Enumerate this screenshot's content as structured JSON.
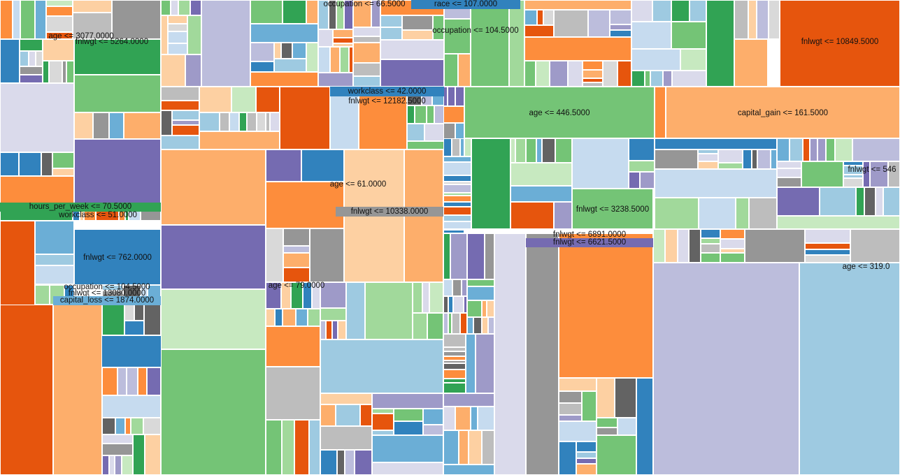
{
  "palette": {
    "blue": "#3182bd",
    "blue_mid": "#6baed6",
    "blue_light": "#9ecae1",
    "blue_pale": "#c6dbef",
    "orange": "#e6550d",
    "orange_mid": "#fd8d3c",
    "orange_light": "#fdae6b",
    "orange_pale": "#fdd0a2",
    "green": "#31a354",
    "green_mid": "#74c476",
    "green_light": "#a1d99b",
    "green_pale": "#c7e9c0",
    "purple": "#756bb1",
    "purple_mid": "#9e9ac8",
    "purple_light": "#bcbddc",
    "purple_pale": "#dadaeb",
    "gray": "#636363",
    "gray_mid": "#969696",
    "gray_light": "#bdbdbd",
    "gray_pale": "#d9d9d9"
  },
  "labels": [
    "age <= 3077.0000",
    "fnlwgt <= 5264.0000",
    "occupation <= 66.5000",
    "race <= 107.0000",
    "occupation <= 104.5000",
    "fnlwgt <= 10849.5000",
    "workclass <= 42.0000",
    "fnlwgt <= 12182.5000",
    "age <= 446.5000",
    "capital_gain <= 161.5000",
    "fnlwgt <= 546",
    "age <= 61.0000",
    "fnlwgt <= 10338.0000",
    "fnlwgt <= 3238.5000",
    "hours_per_week <= 70.5000",
    "workclass <= 51.0000",
    "fnlwgt <= 762.0000",
    "fnlwgt <= 6891.0000",
    "fnlwgt <= 6621.5000",
    "age <= 319.0",
    "occupation <= 104.5000",
    "fnlwgt <= 13080.0000",
    "capital_loss <= 1874.0000",
    "age <= 79.0000"
  ]
}
